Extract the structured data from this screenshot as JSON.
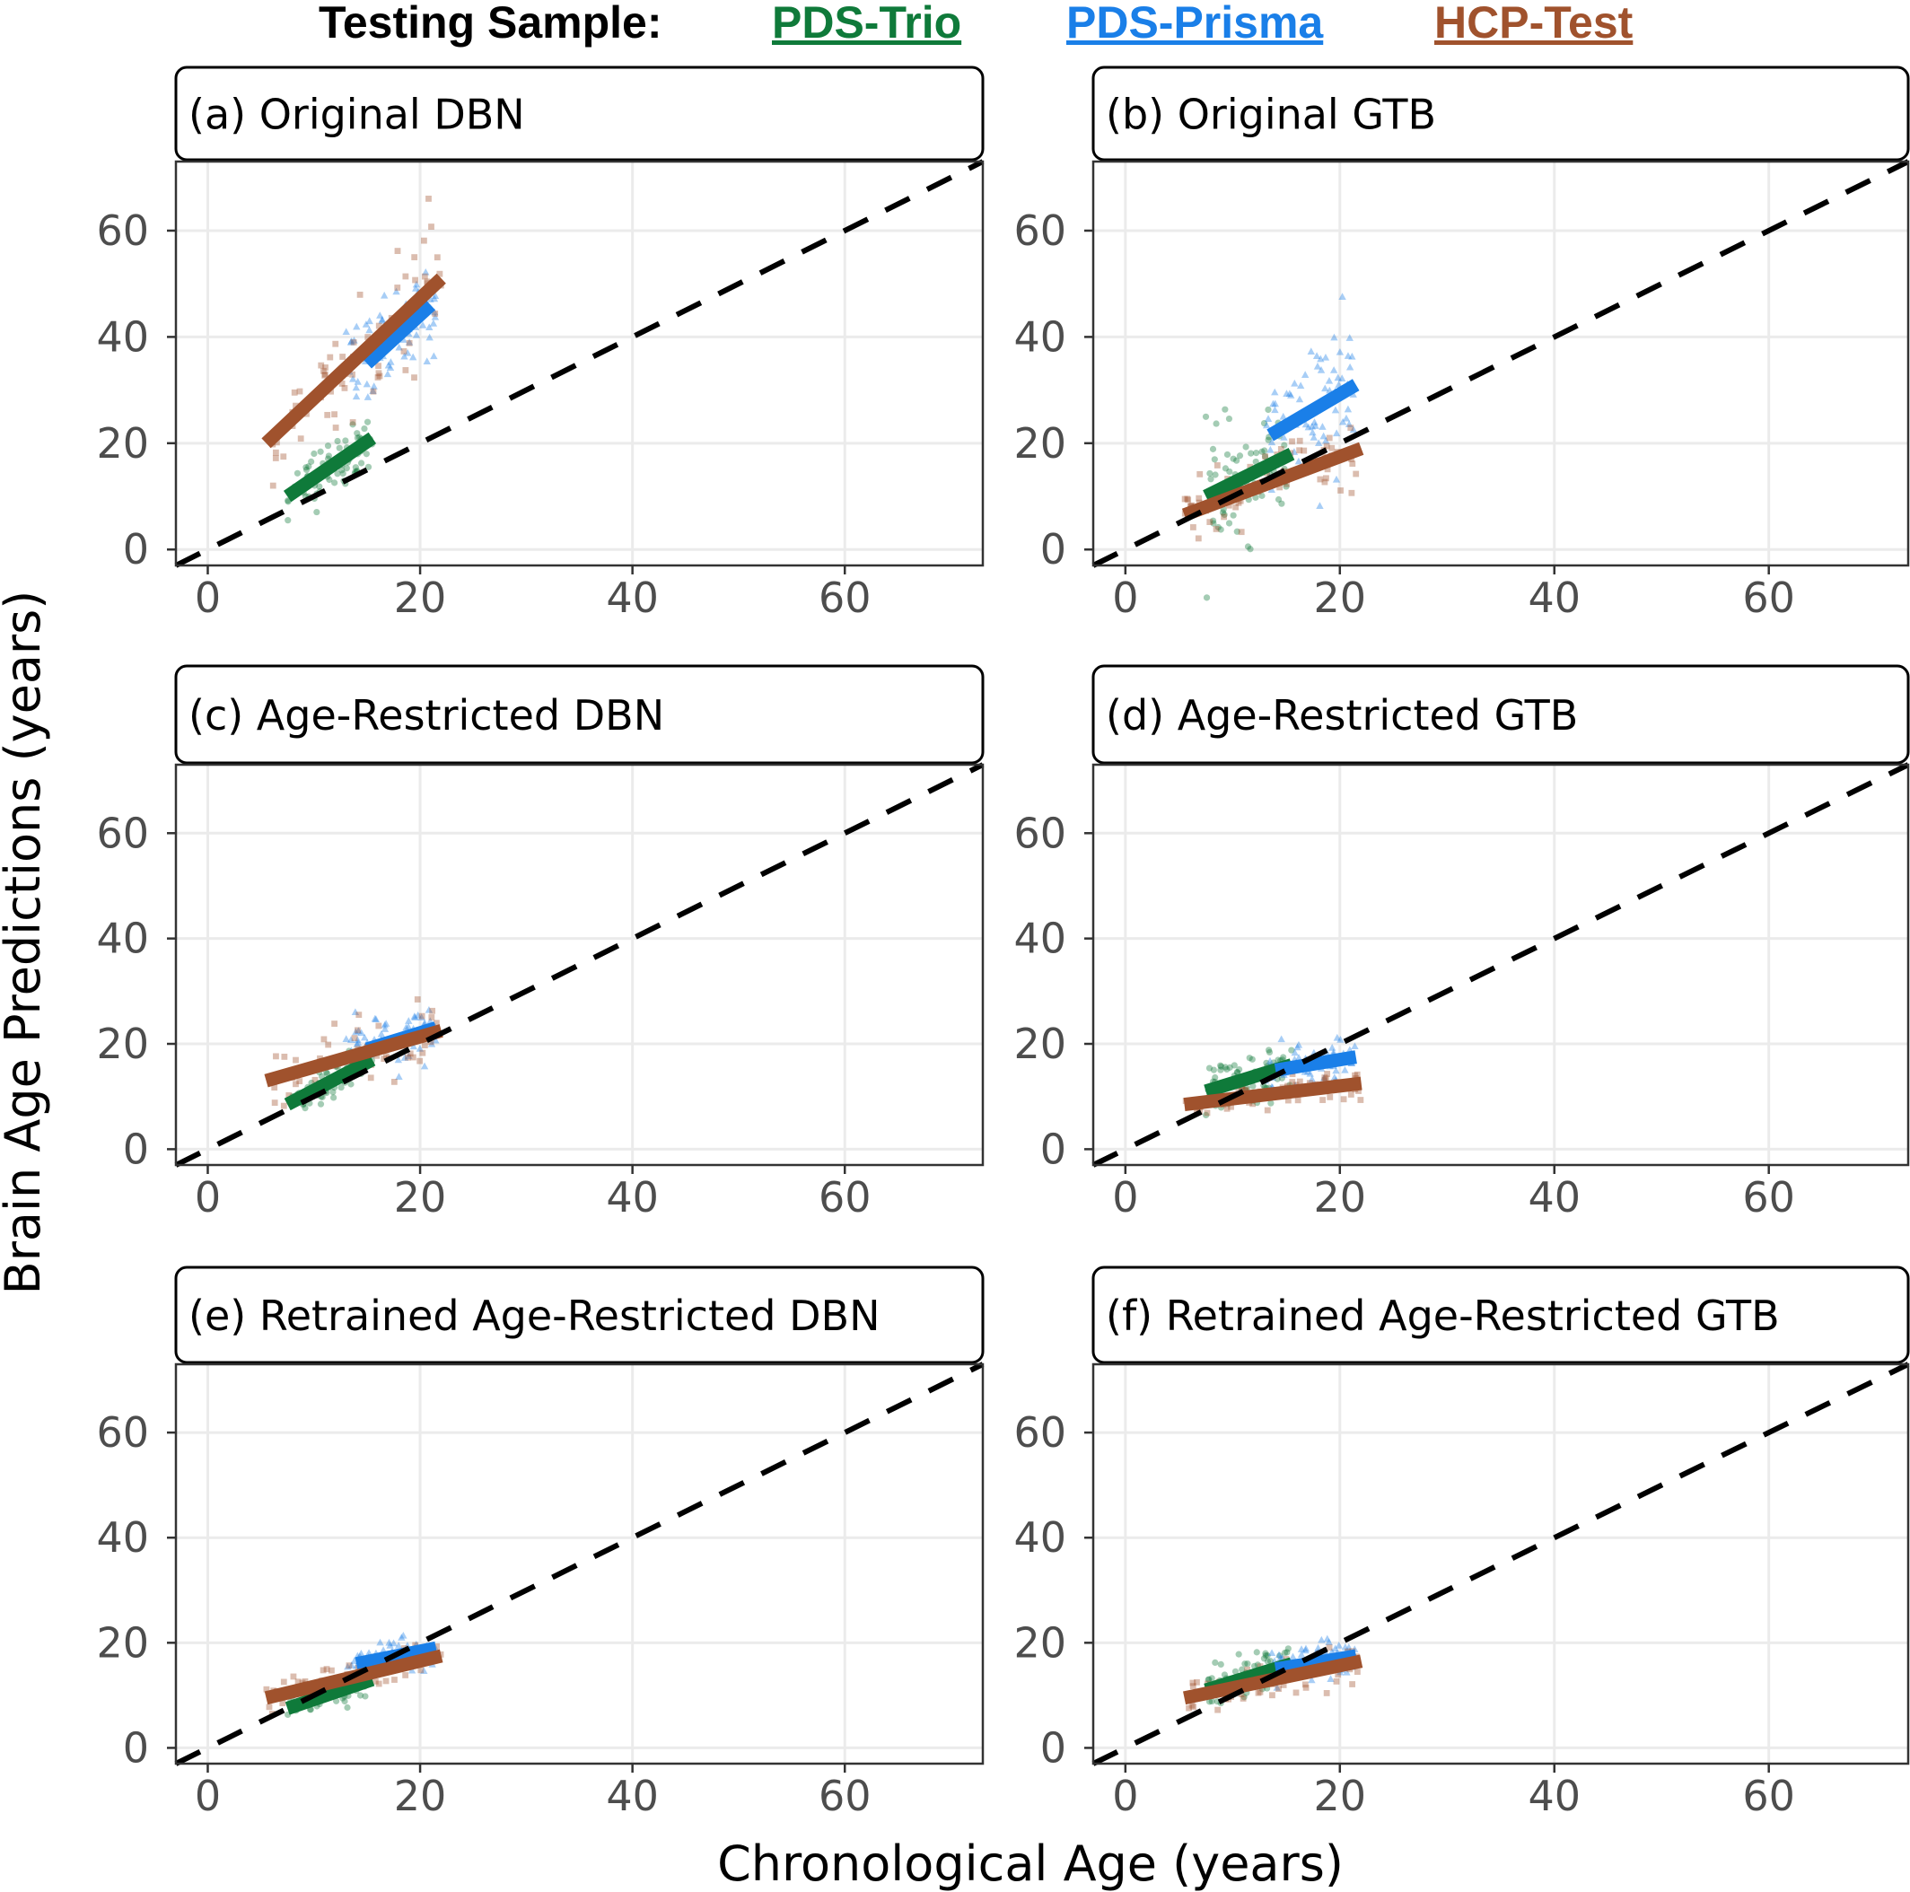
{
  "legend": {
    "title": "Testing Sample:",
    "items": [
      {
        "label": "PDS-Trio",
        "color": "#0f7a3a"
      },
      {
        "label": "PDS-Prisma",
        "color": "#1a7fe8"
      },
      {
        "label": "HCP-Test",
        "color": "#a0522d"
      }
    ]
  },
  "axes": {
    "xlabel": "Chronological Age (years)",
    "ylabel": "Brain Age Predictions (years)"
  },
  "chart_data": [
    {
      "type": "scatter",
      "panel": "(a)",
      "title": "Original DBN",
      "xlim": [
        -3,
        73
      ],
      "ylim": [
        -3,
        73
      ],
      "xticks": [
        0,
        20,
        40,
        60
      ],
      "yticks": [
        0,
        20,
        40,
        60
      ],
      "grid": true,
      "identity_line": true,
      "series": [
        {
          "name": "PDS-Trio",
          "color": "#0f7a3a",
          "marker": "circle",
          "x_range": [
            7.5,
            15.5
          ],
          "spread": 2.8,
          "fit": [
            [
              7.5,
              10.0
            ],
            [
              15.5,
              21.0
            ]
          ]
        },
        {
          "name": "PDS-Prisma",
          "color": "#1a7fe8",
          "marker": "triangle",
          "x_range": [
            13,
            21.5
          ],
          "spread": 4.5,
          "fit": [
            [
              15,
              35.0
            ],
            [
              21,
              46.0
            ]
          ]
        },
        {
          "name": "HCP-Test",
          "color": "#a0522d",
          "marker": "square",
          "x_range": [
            6,
            22
          ],
          "spread": 6,
          "fit": [
            [
              5.5,
              20.0
            ],
            [
              22,
              51.0
            ]
          ]
        }
      ]
    },
    {
      "type": "scatter",
      "panel": "(b)",
      "title": "Original GTB",
      "xlim": [
        -3,
        73
      ],
      "ylim": [
        -3,
        73
      ],
      "xticks": [
        0,
        20,
        40,
        60
      ],
      "yticks": [
        0,
        20,
        40,
        60
      ],
      "grid": true,
      "identity_line": true,
      "series": [
        {
          "name": "PDS-Trio",
          "color": "#0f7a3a",
          "marker": "circle",
          "x_range": [
            7.5,
            15.5
          ],
          "spread": 5.5,
          "fit": [
            [
              7.5,
              10.0
            ],
            [
              15.5,
              18.0
            ]
          ]
        },
        {
          "name": "PDS-Prisma",
          "color": "#1a7fe8",
          "marker": "triangle",
          "x_range": [
            13,
            21.5
          ],
          "spread": 6.5,
          "fit": [
            [
              13.5,
              21.5
            ],
            [
              21.5,
              31.0
            ]
          ]
        },
        {
          "name": "HCP-Test",
          "color": "#a0522d",
          "marker": "square",
          "x_range": [
            5.5,
            22
          ],
          "spread": 3,
          "fit": [
            [
              5.5,
              6.5
            ],
            [
              22,
              19.0
            ]
          ]
        }
      ]
    },
    {
      "type": "scatter",
      "panel": "(c)",
      "title": "Age-Restricted DBN",
      "xlim": [
        -3,
        73
      ],
      "ylim": [
        -3,
        73
      ],
      "xticks": [
        0,
        20,
        40,
        60
      ],
      "yticks": [
        0,
        20,
        40,
        60
      ],
      "grid": true,
      "identity_line": true,
      "series": [
        {
          "name": "PDS-Trio",
          "color": "#0f7a3a",
          "marker": "circle",
          "x_range": [
            7.5,
            15.5
          ],
          "spread": 1.8,
          "fit": [
            [
              7.5,
              8.5
            ],
            [
              15.5,
              17.0
            ]
          ]
        },
        {
          "name": "PDS-Prisma",
          "color": "#1a7fe8",
          "marker": "triangle",
          "x_range": [
            13,
            21.5
          ],
          "spread": 2.5,
          "fit": [
            [
              15,
              19.0
            ],
            [
              21.5,
              23.0
            ]
          ]
        },
        {
          "name": "HCP-Test",
          "color": "#a0522d",
          "marker": "square",
          "x_range": [
            6,
            22
          ],
          "spread": 3,
          "fit": [
            [
              5.5,
              13.0
            ],
            [
              22,
              22.5
            ]
          ]
        }
      ]
    },
    {
      "type": "scatter",
      "panel": "(d)",
      "title": "Age-Restricted GTB",
      "xlim": [
        -3,
        73
      ],
      "ylim": [
        -3,
        73
      ],
      "xticks": [
        0,
        20,
        40,
        60
      ],
      "yticks": [
        0,
        20,
        40,
        60
      ],
      "grid": true,
      "identity_line": true,
      "series": [
        {
          "name": "PDS-Trio",
          "color": "#0f7a3a",
          "marker": "circle",
          "x_range": [
            7.5,
            15.5
          ],
          "spread": 2.5,
          "fit": [
            [
              7.5,
              11.0
            ],
            [
              15.5,
              16.0
            ]
          ]
        },
        {
          "name": "PDS-Prisma",
          "color": "#1a7fe8",
          "marker": "triangle",
          "x_range": [
            13,
            21.5
          ],
          "spread": 1.8,
          "fit": [
            [
              14,
              15.0
            ],
            [
              21.5,
              17.5
            ]
          ]
        },
        {
          "name": "HCP-Test",
          "color": "#a0522d",
          "marker": "square",
          "x_range": [
            5.5,
            22
          ],
          "spread": 1.5,
          "fit": [
            [
              5.5,
              8.5
            ],
            [
              22,
              12.5
            ]
          ]
        }
      ]
    },
    {
      "type": "scatter",
      "panel": "(e)",
      "title": "Retrained Age-Restricted DBN",
      "xlim": [
        -3,
        73
      ],
      "ylim": [
        -3,
        73
      ],
      "xticks": [
        0,
        20,
        40,
        60
      ],
      "yticks": [
        0,
        20,
        40,
        60
      ],
      "grid": true,
      "identity_line": true,
      "series": [
        {
          "name": "PDS-Trio",
          "color": "#0f7a3a",
          "marker": "circle",
          "x_range": [
            7.5,
            15.5
          ],
          "spread": 1.3,
          "fit": [
            [
              7.5,
              7.5
            ],
            [
              15.5,
              13.0
            ]
          ]
        },
        {
          "name": "PDS-Prisma",
          "color": "#1a7fe8",
          "marker": "triangle",
          "x_range": [
            13,
            21.5
          ],
          "spread": 1.5,
          "fit": [
            [
              14,
              16.0
            ],
            [
              21.5,
              19.0
            ]
          ]
        },
        {
          "name": "HCP-Test",
          "color": "#a0522d",
          "marker": "square",
          "x_range": [
            5.5,
            22
          ],
          "spread": 1.8,
          "fit": [
            [
              5.5,
              9.5
            ],
            [
              22,
              17.5
            ]
          ]
        }
      ]
    },
    {
      "type": "scatter",
      "panel": "(f)",
      "title": "Retrained Age-Restricted GTB",
      "xlim": [
        -3,
        73
      ],
      "ylim": [
        -3,
        73
      ],
      "xticks": [
        0,
        20,
        40,
        60
      ],
      "yticks": [
        0,
        20,
        40,
        60
      ],
      "grid": true,
      "identity_line": true,
      "series": [
        {
          "name": "PDS-Trio",
          "color": "#0f7a3a",
          "marker": "circle",
          "x_range": [
            7.5,
            15.5
          ],
          "spread": 2.2,
          "fit": [
            [
              7.5,
              11.0
            ],
            [
              15.5,
              16.0
            ]
          ]
        },
        {
          "name": "PDS-Prisma",
          "color": "#1a7fe8",
          "marker": "triangle",
          "x_range": [
            13,
            21.5
          ],
          "spread": 1.8,
          "fit": [
            [
              14,
              15.0
            ],
            [
              21.5,
              17.5
            ]
          ]
        },
        {
          "name": "HCP-Test",
          "color": "#a0522d",
          "marker": "square",
          "x_range": [
            5.5,
            22
          ],
          "spread": 1.8,
          "fit": [
            [
              5.5,
              9.5
            ],
            [
              22,
              16.5
            ]
          ]
        }
      ]
    }
  ]
}
